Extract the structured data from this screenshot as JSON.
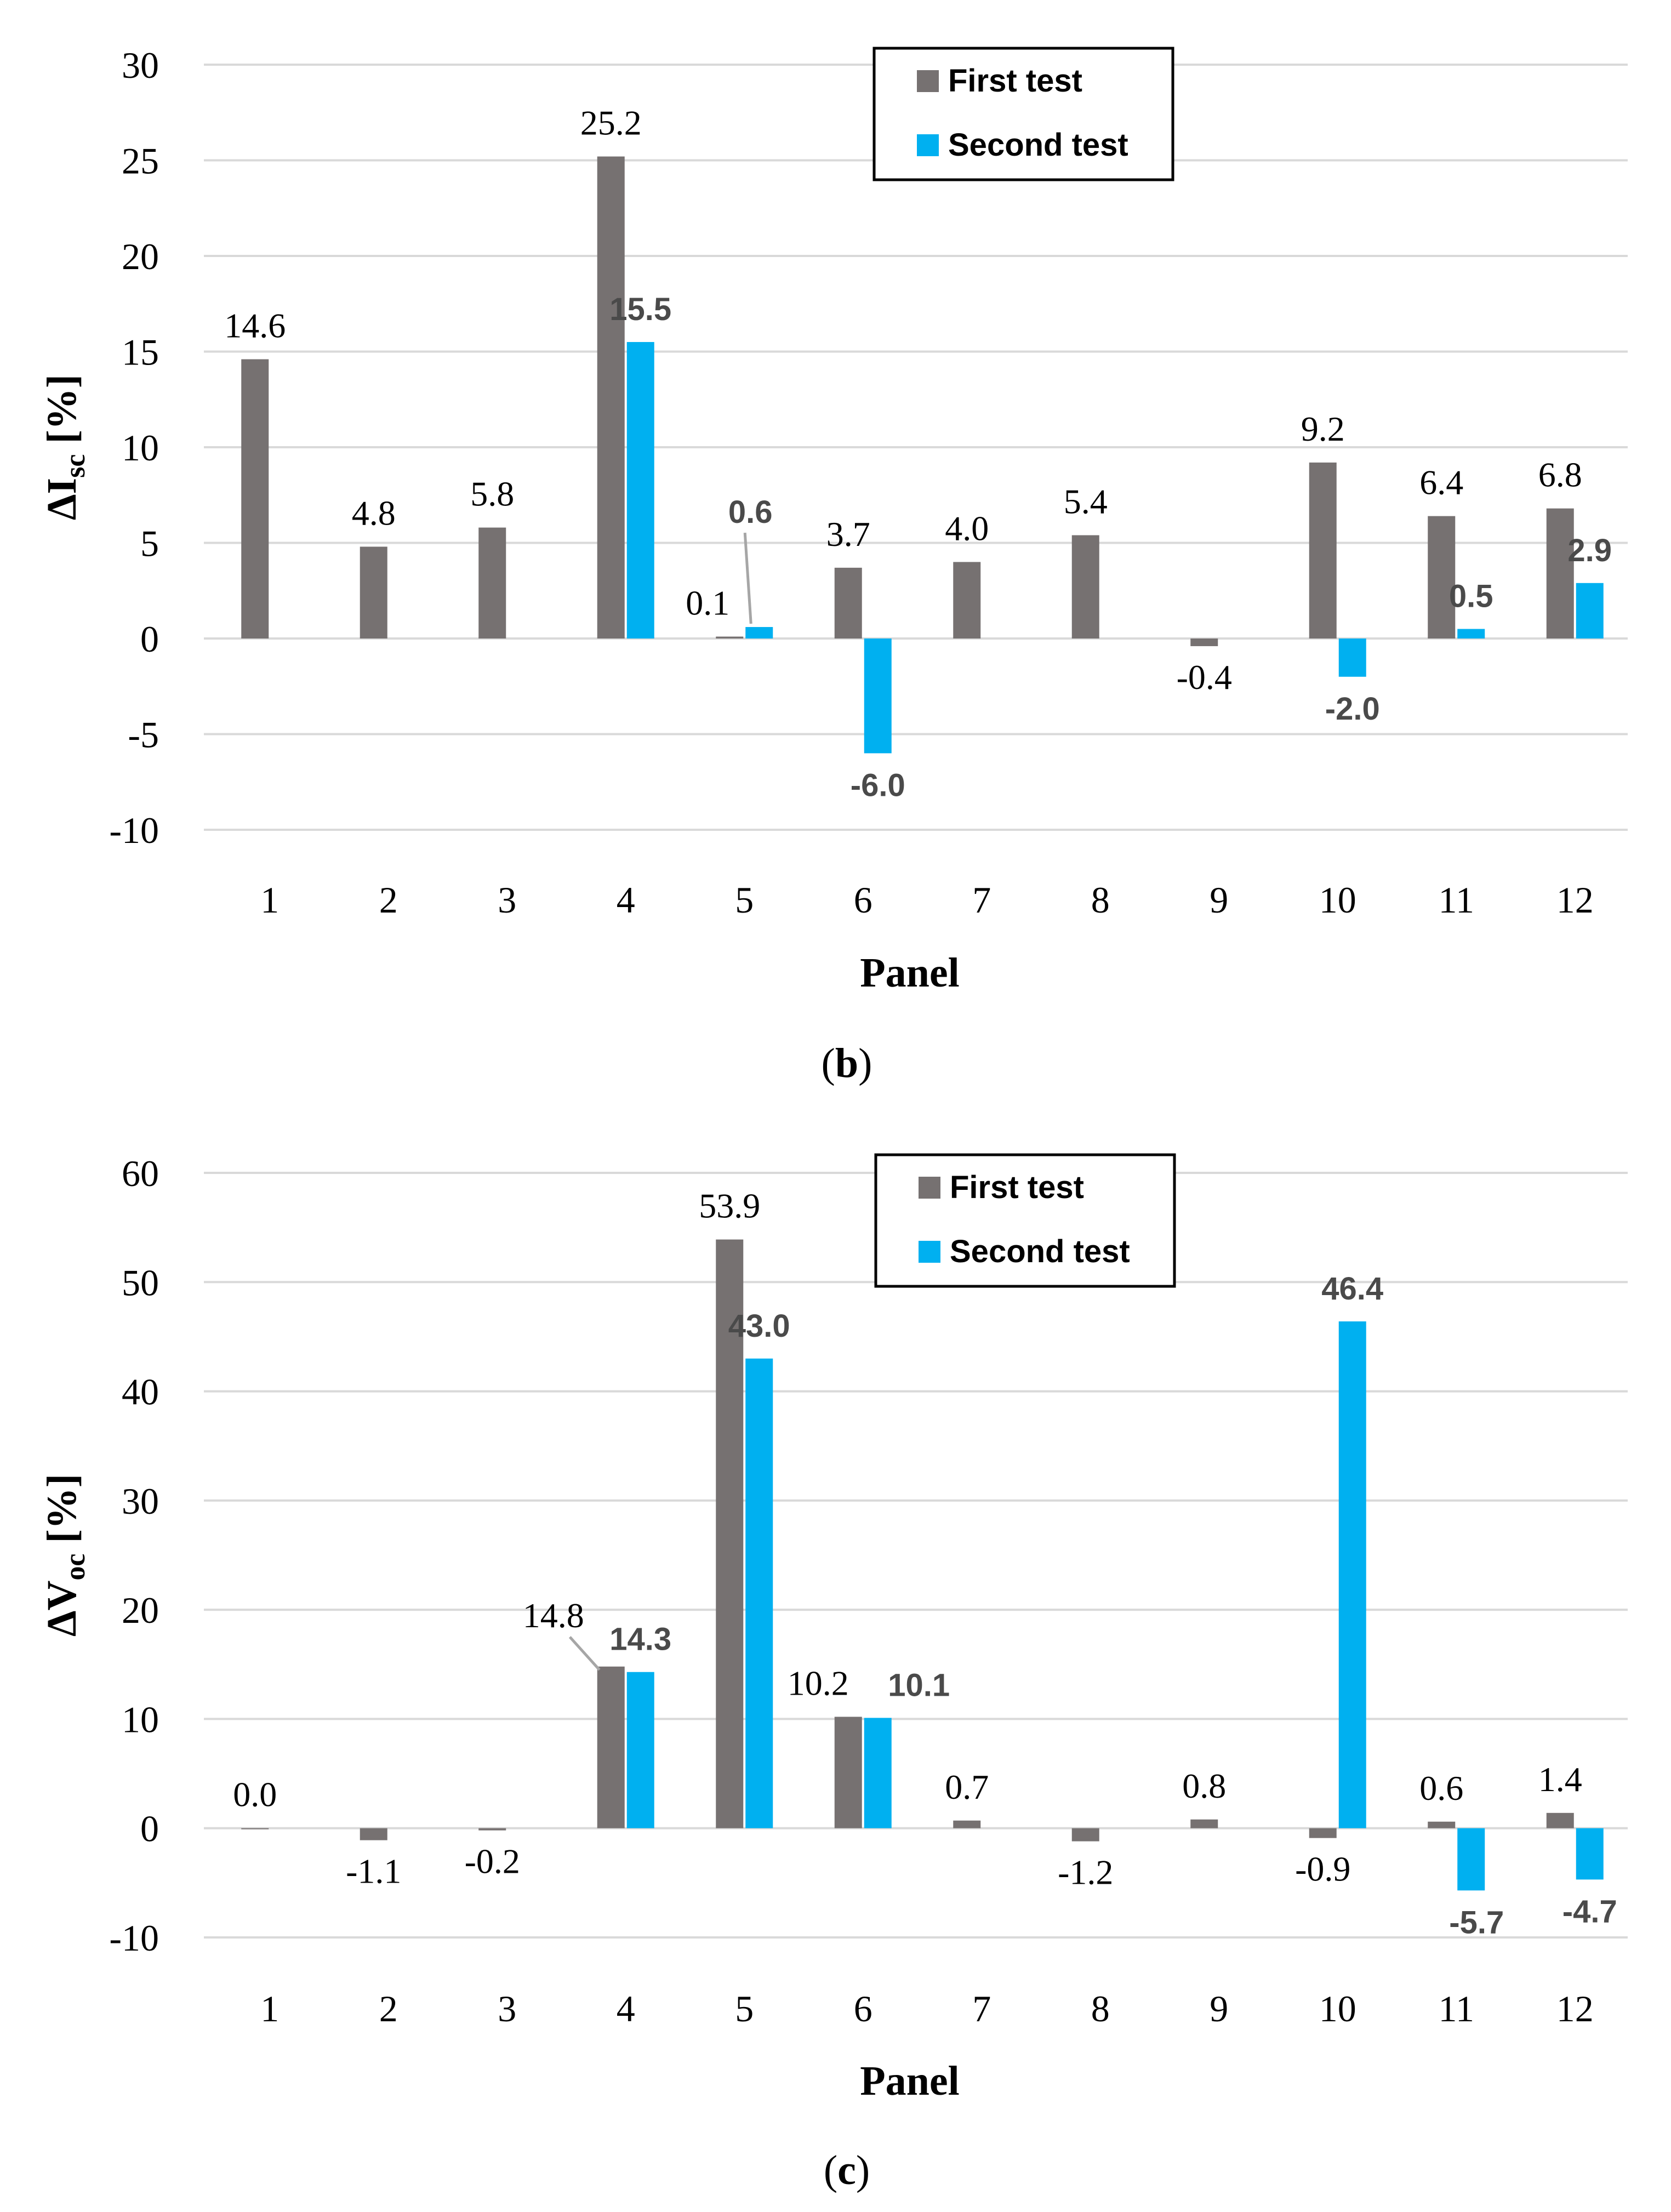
{
  "colors": {
    "first": "#767171",
    "second": "#00B0F0",
    "grid": "#d9d9d9",
    "leader": "#a6a6a6"
  },
  "chart_data": [
    {
      "id": "b",
      "type": "bar",
      "caption_open": "(",
      "caption_letter": "b",
      "caption_close": ")",
      "xlabel": "Panel",
      "ylabel_main": "ΔI",
      "ylabel_sub": "sc",
      "ylabel_unit": " [%]",
      "ylim": [
        -10,
        30
      ],
      "yticks": [
        30,
        25,
        20,
        15,
        10,
        5,
        0,
        -5,
        -10
      ],
      "categories": [
        "1",
        "2",
        "3",
        "4",
        "5",
        "6",
        "7",
        "8",
        "9",
        "10",
        "11",
        "12"
      ],
      "legend": {
        "position": "top-center",
        "labels": [
          "First test",
          "Second test"
        ]
      },
      "series": [
        {
          "name": "First test",
          "values": [
            14.6,
            4.8,
            5.8,
            25.2,
            0.1,
            3.7,
            4.0,
            5.4,
            -0.4,
            9.2,
            6.4,
            6.8
          ],
          "labels": [
            "14.6",
            "4.8",
            "5.8",
            "25.2",
            "0.1",
            "3.7",
            "4.0",
            "5.4",
            "-0.4",
            "9.2",
            "6.4",
            "6.8"
          ]
        },
        {
          "name": "Second test",
          "values": [
            null,
            null,
            null,
            15.5,
            0.6,
            -6.0,
            null,
            null,
            null,
            -2.0,
            0.5,
            2.9
          ],
          "labels": [
            "",
            "",
            "",
            "15.5",
            "0.6",
            "-6.0",
            "",
            "",
            "",
            "-2.0",
            "0.5",
            "2.9"
          ]
        }
      ]
    },
    {
      "id": "c",
      "type": "bar",
      "caption_open": "(",
      "caption_letter": "c",
      "caption_close": ")",
      "xlabel": "Panel",
      "ylabel_main": "ΔV",
      "ylabel_sub": "oc",
      "ylabel_unit": " [%]",
      "ylim": [
        -10,
        60
      ],
      "yticks": [
        60,
        50,
        40,
        30,
        20,
        10,
        0,
        -10
      ],
      "categories": [
        "1",
        "2",
        "3",
        "4",
        "5",
        "6",
        "7",
        "8",
        "9",
        "10",
        "11",
        "12"
      ],
      "legend": {
        "position": "top-center",
        "labels": [
          "First test",
          "Second test"
        ]
      },
      "series": [
        {
          "name": "First test",
          "values": [
            0.0,
            -1.1,
            -0.2,
            14.8,
            53.9,
            10.2,
            0.7,
            -1.2,
            0.8,
            -0.9,
            0.6,
            1.4
          ],
          "labels": [
            "0.0",
            "-1.1",
            "-0.2",
            "14.8",
            "53.9",
            "10.2",
            "0.7",
            "-1.2",
            "0.8",
            "-0.9",
            "0.6",
            "1.4"
          ]
        },
        {
          "name": "Second test",
          "values": [
            null,
            null,
            null,
            14.3,
            43.0,
            10.1,
            null,
            null,
            null,
            46.4,
            -5.7,
            -4.7
          ],
          "labels": [
            "",
            "",
            "",
            "14.3",
            "43.0",
            "10.1",
            "",
            "",
            "",
            "46.4",
            "-5.7",
            "-4.7"
          ]
        }
      ]
    }
  ]
}
